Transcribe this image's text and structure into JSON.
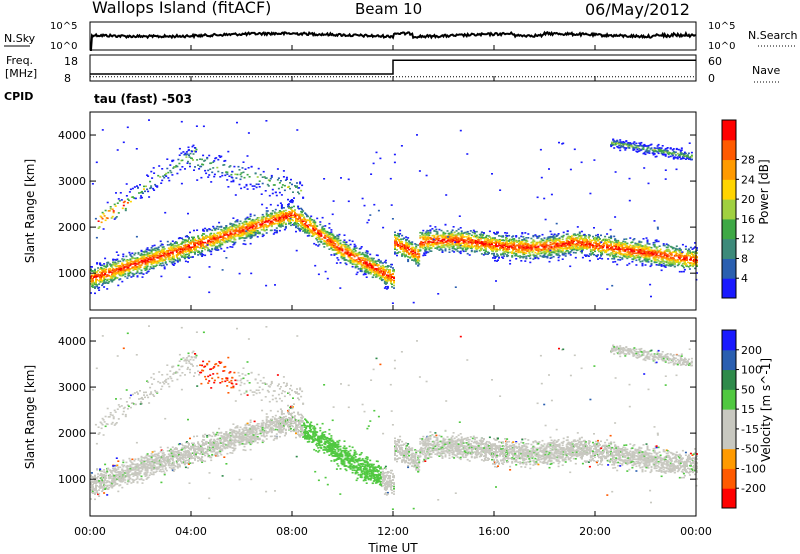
{
  "header": {
    "site": "Wallops Island (fitACF)",
    "beam": "Beam 10",
    "date": "06/May/2012"
  },
  "panels": {
    "nsky_label": "N.Sky",
    "nsky_ticks": [
      "10^5",
      "10^0"
    ],
    "nsearch_label": "N.Search",
    "nsearch_ticks": [
      "10^5",
      "10^0"
    ],
    "freq_label": "Freq.",
    "freq_unit": "[MHz]",
    "freq_ticks": [
      "18",
      "8"
    ],
    "nave_label": "Nave",
    "nave_ticks": [
      "60",
      "0"
    ],
    "cpid_label": "CPID",
    "cpid_value": "tau (fast) -503"
  },
  "colors": {
    "power_scale": [
      "#1a1aff",
      "#2a5fb0",
      "#3d8a7a",
      "#3ea845",
      "#a0d040",
      "#ffd400",
      "#ff9a00",
      "#ff5a00",
      "#ff0000"
    ],
    "velocity_scale": [
      "#ff0000",
      "#ff5a00",
      "#ff9a00",
      "#c8c8c0",
      "#c8c8c0",
      "#50c840",
      "#2e8a4a",
      "#2a5fb0",
      "#1a1aff"
    ]
  },
  "chart_data": [
    {
      "type": "heatmap",
      "xlabel": "",
      "ylabel": "Slant Range [km]",
      "xlim": [
        0,
        24
      ],
      "ylim": [
        200,
        4500
      ],
      "yticks": [
        1000,
        2000,
        3000,
        4000
      ],
      "colorbar": {
        "label": "Power [dB]",
        "range": [
          0,
          32
        ],
        "ticks": [
          "4",
          "8",
          "12",
          "16",
          "20",
          "24",
          "28"
        ]
      }
    },
    {
      "type": "heatmap",
      "xlabel": "Time UT",
      "ylabel": "Slant Range [km]",
      "xlim": [
        0,
        24
      ],
      "ylim": [
        200,
        4500
      ],
      "xticks": [
        "00:00",
        "04:00",
        "08:00",
        "12:00",
        "16:00",
        "20:00",
        "00:00"
      ],
      "yticks": [
        1000,
        2000,
        3000,
        4000
      ],
      "colorbar": {
        "label": "Velocity [m s^-1]",
        "ticks": [
          "-200",
          "-100",
          "-50",
          "-15",
          "15",
          "50",
          "100",
          "200"
        ]
      }
    }
  ]
}
